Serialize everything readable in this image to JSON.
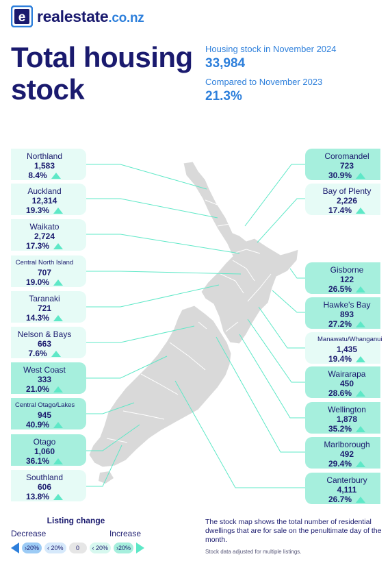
{
  "brand": {
    "name": "realestate",
    "tld": ".co.nz"
  },
  "title": "Total housing stock",
  "summary": {
    "stock_label": "Housing stock in November 2024",
    "stock_value": "33,984",
    "compare_label": "Compared to November 2023",
    "compare_value": "21.3%"
  },
  "regions_left": [
    {
      "name": "Northland",
      "count": "1,583",
      "pct": "8.4%",
      "change": "increase",
      "shade": "light"
    },
    {
      "name": "Auckland",
      "count": "12,314",
      "pct": "19.3%",
      "change": "increase",
      "shade": "light"
    },
    {
      "name": "Waikato",
      "count": "2,724",
      "pct": "17.3%",
      "change": "increase",
      "shade": "light"
    },
    {
      "name": "Central North Island",
      "count": "707",
      "pct": "19.0%",
      "change": "increase",
      "shade": "light"
    },
    {
      "name": "Taranaki",
      "count": "721",
      "pct": "14.3%",
      "change": "increase",
      "shade": "light"
    },
    {
      "name": "Nelson & Bays",
      "count": "663",
      "pct": "7.6%",
      "change": "increase",
      "shade": "light"
    },
    {
      "name": "West Coast",
      "count": "333",
      "pct": "21.0%",
      "change": "increase",
      "shade": "dark"
    },
    {
      "name": "Central Otago/Lakes",
      "count": "945",
      "pct": "40.9%",
      "change": "increase",
      "shade": "dark"
    },
    {
      "name": "Otago",
      "count": "1,060",
      "pct": "36.1%",
      "change": "increase",
      "shade": "dark"
    },
    {
      "name": "Southland",
      "count": "606",
      "pct": "13.8%",
      "change": "increase",
      "shade": "light"
    }
  ],
  "regions_right": [
    {
      "name": "Coromandel",
      "count": "723",
      "pct": "30.9%",
      "change": "increase",
      "shade": "dark"
    },
    {
      "name": "Bay of Plenty",
      "count": "2,226",
      "pct": "17.4%",
      "change": "increase",
      "shade": "light"
    },
    {
      "name": "Gisborne",
      "count": "122",
      "pct": "26.5%",
      "change": "increase",
      "shade": "dark"
    },
    {
      "name": "Hawke's Bay",
      "count": "893",
      "pct": "27.2%",
      "change": "increase",
      "shade": "dark"
    },
    {
      "name": "Manawatu/Whanganui",
      "count": "1,435",
      "pct": "19.4%",
      "change": "increase",
      "shade": "light"
    },
    {
      "name": "Wairarapa",
      "count": "450",
      "pct": "28.6%",
      "change": "increase",
      "shade": "dark"
    },
    {
      "name": "Wellington",
      "count": "1,878",
      "pct": "35.2%",
      "change": "increase",
      "shade": "dark"
    },
    {
      "name": "Marlborough",
      "count": "492",
      "pct": "29.4%",
      "change": "increase",
      "shade": "dark"
    },
    {
      "name": "Canterbury",
      "count": "4,111",
      "pct": "26.7%",
      "change": "increase",
      "shade": "dark"
    }
  ],
  "legend": {
    "title": "Listing change",
    "decrease": "Decrease",
    "increase": "Increase",
    "chips": [
      "›20%",
      "‹ 20%",
      "0",
      "‹ 20%",
      "›20%"
    ]
  },
  "note": "The stock map shows the total number of residential dwellings that are for sale on the penultimate day of the month.",
  "footnote": "Stock data adjusted for multiple listings.",
  "colors": {
    "navy": "#1a1a6e",
    "blue": "#2d7fdb",
    "mint": "#5ee8c7",
    "land": "#d9d9d9"
  }
}
